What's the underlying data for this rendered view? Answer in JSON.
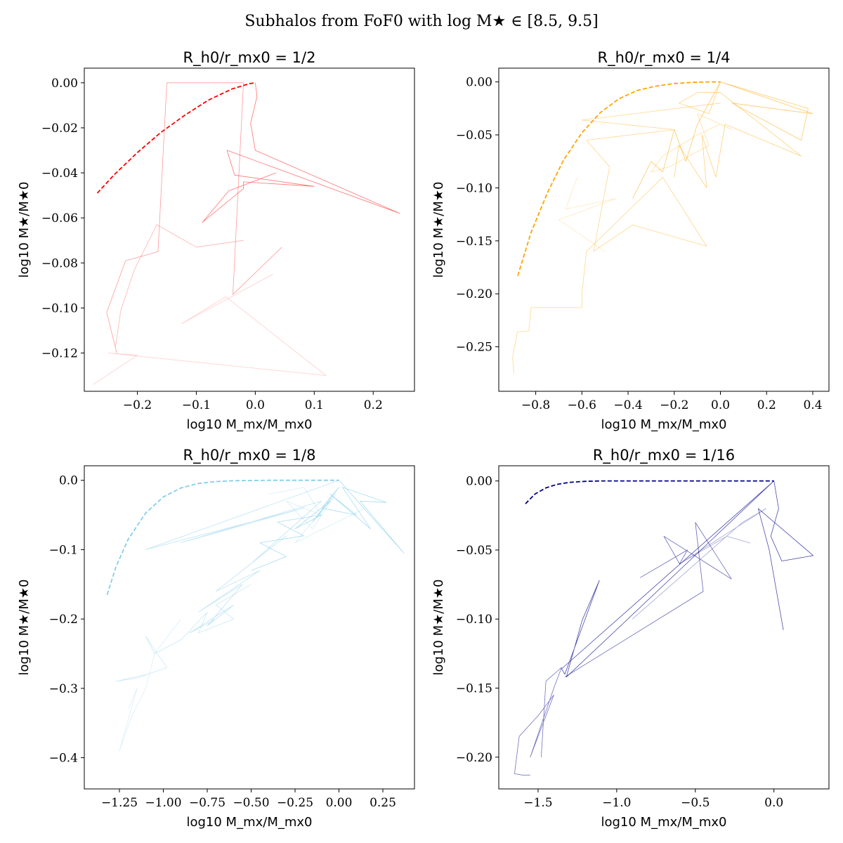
{
  "figure_title": "Subhalos from FoF0 with log M★ ∈ [8.5, 9.5]",
  "chart_data": [
    {
      "type": "line",
      "title": "R_h0/r_mx0 = 1/2",
      "xlabel": "log10 M_mx/M_mx0",
      "ylabel": "log10 M★/M★0",
      "xlim": [
        -0.29,
        0.27
      ],
      "ylim": [
        -0.137,
        0.0065
      ],
      "xticks": [
        -0.2,
        -0.1,
        0.0,
        0.1,
        0.2
      ],
      "xtick_labels": [
        "−0.2",
        "−0.1",
        "0.0",
        "0.1",
        "0.2"
      ],
      "yticks": [
        0.0,
        -0.02,
        -0.04,
        -0.06,
        -0.08,
        -0.1,
        -0.12
      ],
      "ytick_labels": [
        "0.00",
        "−0.02",
        "−0.04",
        "−0.06",
        "−0.08",
        "−0.10",
        "−0.12"
      ],
      "color": "#ff0000",
      "grid": false,
      "model_curve": {
        "x": [
          -0.268,
          -0.24,
          -0.2,
          -0.16,
          -0.12,
          -0.08,
          -0.04,
          -0.01,
          0.0
        ],
        "y": [
          -0.049,
          -0.041,
          -0.031,
          -0.022,
          -0.0145,
          -0.0078,
          -0.0028,
          -0.0004,
          0.0
        ]
      },
      "tracks": [
        {
          "opacity": 0.55,
          "x": [
            0.0,
            0.003,
            -0.008,
            0.0,
            0.245,
            -0.048,
            -0.035,
            0.1,
            -0.02,
            -0.02,
            -0.09,
            -0.045,
            0.035
          ],
          "y": [
            0.0,
            -0.006,
            -0.018,
            -0.03,
            -0.058,
            -0.03,
            -0.041,
            -0.046,
            -0.044,
            -0.047,
            -0.062,
            -0.048,
            -0.04
          ]
        },
        {
          "opacity": 0.4,
          "x": [
            0.045,
            -0.038,
            -0.02,
            -0.15,
            -0.165,
            -0.22,
            -0.252,
            -0.235
          ],
          "y": [
            -0.073,
            -0.094,
            -0.0,
            -0.0,
            -0.075,
            -0.079,
            -0.102,
            -0.12
          ]
        },
        {
          "opacity": 0.3,
          "x": [
            -0.02,
            -0.1,
            -0.167,
            -0.205,
            -0.228,
            -0.237
          ],
          "y": [
            -0.07,
            -0.073,
            -0.063,
            -0.083,
            -0.101,
            -0.117
          ]
        },
        {
          "opacity": 0.2,
          "x": [
            0.03,
            -0.125,
            -0.05,
            0.12,
            -0.25,
            -0.2,
            -0.275
          ],
          "y": [
            -0.085,
            -0.107,
            -0.095,
            -0.13,
            -0.12,
            -0.121,
            -0.134
          ]
        }
      ]
    },
    {
      "type": "line",
      "title": "R_h0/r_mx0 = 1/4",
      "xlabel": "log10 M_mx/M_mx0",
      "ylabel": "log10 M★/M★0",
      "xlim": [
        -0.96,
        0.47
      ],
      "ylim": [
        -0.292,
        0.013
      ],
      "xticks": [
        -0.8,
        -0.6,
        -0.4,
        -0.2,
        0.0,
        0.2,
        0.4
      ],
      "xtick_labels": [
        "−0.8",
        "−0.6",
        "−0.4",
        "−0.2",
        "0.0",
        "0.2",
        "0.4"
      ],
      "yticks": [
        0.0,
        -0.05,
        -0.1,
        -0.15,
        -0.2,
        -0.25
      ],
      "ytick_labels": [
        "0.00",
        "−0.05",
        "−0.10",
        "−0.15",
        "−0.20",
        "−0.25"
      ],
      "color": "#ffa500",
      "grid": false,
      "model_curve": {
        "x": [
          -0.878,
          -0.82,
          -0.75,
          -0.68,
          -0.6,
          -0.52,
          -0.44,
          -0.36,
          -0.28,
          -0.2,
          -0.12,
          -0.04,
          0.0
        ],
        "y": [
          -0.183,
          -0.142,
          -0.105,
          -0.074,
          -0.048,
          -0.029,
          -0.016,
          -0.008,
          -0.004,
          -0.0015,
          -0.0004,
          0.0,
          0.0
        ]
      },
      "tracks": [
        {
          "opacity": 0.6,
          "x": [
            0.0,
            0.38,
            0.35,
            0.05,
            0.4,
            0.0,
            -0.1,
            -0.15,
            -0.2,
            -0.25,
            -0.3,
            -0.38
          ],
          "y": [
            0.0,
            -0.025,
            -0.055,
            -0.02,
            -0.03,
            0.0,
            -0.04,
            -0.075,
            -0.045,
            -0.085,
            -0.075,
            -0.11
          ]
        },
        {
          "opacity": 0.5,
          "x": [
            0.0,
            -0.05,
            -0.18,
            -0.1,
            0.0,
            0.35,
            0.02,
            -0.02,
            -0.08,
            -0.06,
            -0.18,
            -0.2
          ],
          "y": [
            0.0,
            -0.03,
            -0.02,
            -0.01,
            -0.01,
            -0.07,
            -0.04,
            -0.09,
            -0.05,
            -0.1,
            -0.06,
            -0.09
          ]
        },
        {
          "opacity": 0.45,
          "x": [
            0.0,
            -0.6,
            -0.2,
            -0.58,
            -0.48,
            -0.55,
            -0.38,
            -0.06,
            -0.25,
            -0.58,
            -0.6,
            -0.6,
            -0.82,
            -0.83,
            -0.88,
            -0.9,
            -0.895
          ],
          "y": [
            -0.02,
            -0.036,
            -0.045,
            -0.055,
            -0.08,
            -0.16,
            -0.135,
            -0.155,
            -0.09,
            -0.16,
            -0.2,
            -0.213,
            -0.213,
            -0.235,
            -0.236,
            -0.26,
            -0.275
          ]
        },
        {
          "opacity": 0.35,
          "x": [
            0.05,
            -0.1,
            -0.05,
            -0.22,
            -0.3,
            -0.25,
            -0.1,
            0.0
          ],
          "y": [
            -0.045,
            -0.03,
            -0.06,
            -0.08,
            -0.085,
            -0.07,
            -0.05,
            -0.04
          ]
        },
        {
          "opacity": 0.25,
          "x": [
            -0.62,
            -0.67,
            -0.45,
            -0.7,
            -0.5
          ],
          "y": [
            -0.09,
            -0.12,
            -0.11,
            -0.13,
            -0.16
          ]
        }
      ]
    },
    {
      "type": "line",
      "title": "R_h0/r_mx0 = 1/8",
      "xlabel": "log10 M_mx/M_mx0",
      "ylabel": "log10 M★/M★0",
      "xlim": [
        -1.45,
        0.43
      ],
      "ylim": [
        -0.445,
        0.021
      ],
      "xticks": [
        -1.25,
        -1.0,
        -0.75,
        -0.5,
        -0.25,
        0.0,
        0.25
      ],
      "xtick_labels": [
        "−1.25",
        "−1.00",
        "−0.75",
        "−0.50",
        "−0.25",
        "0.00",
        "0.25"
      ],
      "yticks": [
        0.0,
        -0.1,
        -0.2,
        -0.3,
        -0.4
      ],
      "ytick_labels": [
        "0.0",
        "−0.1",
        "−0.2",
        "−0.3",
        "−0.4"
      ],
      "color": "#87ceeb",
      "grid": false,
      "model_curve": {
        "x": [
          -1.32,
          -1.27,
          -1.2,
          -1.1,
          -1.0,
          -0.9,
          -0.8,
          -0.7,
          -0.6,
          -0.4,
          -0.2,
          0.0
        ],
        "y": [
          -0.165,
          -0.125,
          -0.085,
          -0.047,
          -0.024,
          -0.011,
          -0.0045,
          -0.0018,
          -0.0006,
          0.0,
          0.0,
          0.0
        ]
      },
      "tracks": [
        {
          "opacity": 0.7,
          "x": [
            0.0,
            0.37,
            0.12,
            0.27,
            0.02,
            0.18,
            -0.05,
            0.1,
            -0.1,
            0.0,
            -0.15,
            -0.05,
            -0.25,
            -0.1,
            -0.35,
            -0.2,
            -0.45,
            -0.3,
            -0.5
          ],
          "y": [
            0.0,
            -0.105,
            -0.03,
            -0.032,
            -0.01,
            -0.07,
            -0.02,
            -0.05,
            -0.04,
            -0.01,
            -0.06,
            -0.03,
            -0.07,
            -0.05,
            -0.06,
            -0.08,
            -0.09,
            -0.11,
            -0.13
          ]
        },
        {
          "opacity": 0.55,
          "x": [
            0.0,
            -1.1,
            -0.2,
            -0.9,
            -0.1,
            -0.5,
            -0.3,
            -0.6,
            -0.4,
            -0.7,
            -0.45,
            -0.8,
            -0.55,
            -0.75,
            -0.6,
            -0.85,
            -0.7
          ],
          "y": [
            0.0,
            -0.1,
            -0.04,
            -0.09,
            -0.03,
            -0.12,
            -0.08,
            -0.14,
            -0.1,
            -0.16,
            -0.13,
            -0.19,
            -0.15,
            -0.21,
            -0.18,
            -0.22,
            -0.2
          ]
        },
        {
          "opacity": 0.45,
          "x": [
            -0.5,
            -0.7,
            -0.6,
            -0.8,
            -0.75,
            -0.9,
            -1.05,
            -1.1,
            -0.98,
            -1.15,
            -1.27,
            -1.1
          ],
          "y": [
            -0.15,
            -0.18,
            -0.2,
            -0.22,
            -0.19,
            -0.23,
            -0.25,
            -0.225,
            -0.27,
            -0.285,
            -0.29,
            -0.28
          ]
        },
        {
          "opacity": 0.3,
          "x": [
            -0.9,
            -1.05,
            -1.1,
            -1.18,
            -1.25,
            -1.15,
            -1.2
          ],
          "y": [
            -0.2,
            -0.25,
            -0.3,
            -0.34,
            -0.39,
            -0.3,
            -0.33
          ]
        },
        {
          "opacity": 0.35,
          "x": [
            -0.4,
            -0.2,
            -0.1,
            -0.3,
            -0.15,
            -0.02,
            -0.25,
            0.15
          ],
          "y": [
            -0.02,
            -0.01,
            -0.05,
            -0.03,
            -0.07,
            -0.02,
            -0.09,
            -0.04
          ]
        }
      ]
    },
    {
      "type": "line",
      "title": "R_h0/r_mx0 = 1/16",
      "xlabel": "log10 M_mx/M_mx0",
      "ylabel": "log10 M★/M★0",
      "xlim": [
        -1.75,
        0.35
      ],
      "ylim": [
        -0.223,
        0.011
      ],
      "xticks": [
        -1.5,
        -1.0,
        -0.5,
        0.0
      ],
      "xtick_labels": [
        "−1.5",
        "−1.0",
        "−0.5",
        "0.0"
      ],
      "yticks": [
        0.0,
        -0.05,
        -0.1,
        -0.15,
        -0.2
      ],
      "ytick_labels": [
        "0.00",
        "−0.05",
        "−0.10",
        "−0.15",
        "−0.20"
      ],
      "color": "#00008b",
      "grid": false,
      "model_curve": {
        "x": [
          -1.58,
          -1.52,
          -1.45,
          -1.38,
          -1.3,
          -1.2,
          -1.1,
          -1.0,
          -0.8,
          -0.5,
          0.0
        ],
        "y": [
          -0.0165,
          -0.0095,
          -0.005,
          -0.0025,
          -0.001,
          -0.0003,
          0.0,
          0.0,
          0.0,
          0.0,
          0.0
        ]
      },
      "tracks": [
        {
          "opacity": 0.7,
          "x": [
            0.0,
            -1.32,
            -1.22,
            -1.11,
            -1.33,
            -1.35,
            0.0,
            0.03,
            -0.02,
            0.05,
            0.25,
            -0.1,
            -0.03,
            0.06
          ],
          "y": [
            0.0,
            -0.142,
            -0.101,
            -0.072,
            -0.14,
            -0.136,
            0.0,
            -0.02,
            -0.04,
            -0.058,
            -0.054,
            -0.02,
            -0.05,
            -0.108
          ]
        },
        {
          "opacity": 0.6,
          "x": [
            -1.33,
            -0.45,
            -0.5,
            -0.27,
            -0.7,
            -0.6,
            -0.55,
            -0.85
          ],
          "y": [
            -0.142,
            -0.08,
            -0.03,
            -0.071,
            -0.04,
            -0.06,
            -0.05,
            -0.07
          ]
        },
        {
          "opacity": 0.55,
          "x": [
            -1.48,
            -1.45,
            -1.35,
            -1.4,
            -1.55,
            -1.4,
            -1.5,
            -1.62,
            -1.65,
            -1.6,
            -1.55
          ],
          "y": [
            -0.2,
            -0.145,
            -0.135,
            -0.15,
            -0.2,
            -0.155,
            -0.17,
            -0.185,
            -0.212,
            -0.213,
            -0.213
          ]
        },
        {
          "opacity": 0.35,
          "x": [
            -0.9,
            -0.7,
            -0.4,
            -0.2,
            -0.05,
            -0.6,
            -0.3,
            -0.15
          ],
          "y": [
            -0.1,
            -0.08,
            -0.05,
            -0.03,
            -0.02,
            -0.06,
            -0.04,
            -0.045
          ]
        }
      ]
    }
  ]
}
